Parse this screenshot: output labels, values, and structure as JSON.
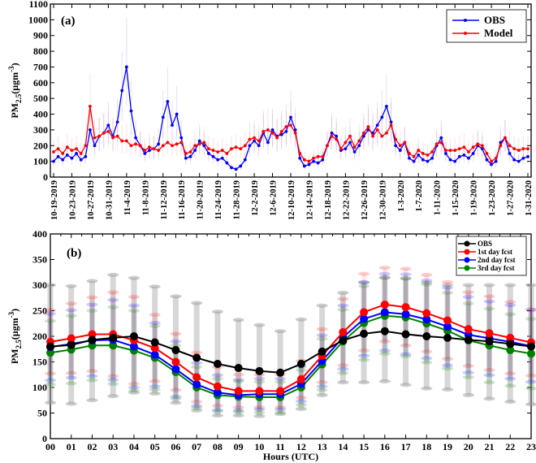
{
  "chart_data": [
    {
      "type": "line",
      "panel_label": "(a)",
      "ylabel": "PM2.5 (µgm-3)",
      "ylabel_main": "PM",
      "ylabel_sub": "2.5",
      "ylabel_unit": "(µgm",
      "ylabel_sup": "-3",
      "ylabel_close": ")",
      "ylim": [
        0,
        1100
      ],
      "yticks": [
        0,
        100,
        200,
        300,
        400,
        500,
        600,
        700,
        800,
        900,
        1000,
        1100
      ],
      "x_start": "10-19-2019",
      "x_step_days": 1,
      "xtick_every_days": 4,
      "xtick_labels": [
        "10-19-2019",
        "10-23-2019",
        "10-27-2019",
        "10-31-2019",
        "11-4-2019",
        "11-8-2019",
        "11-12-2019",
        "11-16-2019",
        "11-20-2019",
        "11-24-2019",
        "11-28-2019",
        "12-2-2019",
        "12-6-2019",
        "12-10-2019",
        "12-14-2019",
        "12-18-2019",
        "12-22-2019",
        "12-26-2019",
        "12-30-2019",
        "1-3-2020",
        "1-7-2020",
        "1-11-2020",
        "1-15-2020",
        "1-19-2020",
        "1-23-2020",
        "1-27-2020",
        "1-31-2020"
      ],
      "legend_position": "top-right",
      "series": [
        {
          "name": "OBS",
          "color": "#0000ff",
          "values": [
            100,
            130,
            110,
            140,
            120,
            150,
            110,
            130,
            300,
            200,
            260,
            280,
            330,
            260,
            350,
            550,
            700,
            420,
            250,
            200,
            150,
            170,
            180,
            210,
            380,
            480,
            330,
            400,
            250,
            120,
            130,
            170,
            230,
            200,
            150,
            130,
            110,
            120,
            90,
            60,
            50,
            70,
            110,
            200,
            230,
            200,
            280,
            220,
            300,
            260,
            270,
            290,
            380,
            300,
            120,
            70,
            80,
            100,
            90,
            110,
            200,
            280,
            260,
            170,
            180,
            220,
            160,
            200,
            260,
            300,
            280,
            330,
            380,
            450,
            350,
            200,
            170,
            220,
            120,
            100,
            140,
            110,
            100,
            120,
            200,
            250,
            150,
            110,
            100,
            130,
            140,
            120,
            150,
            200,
            180,
            110,
            80,
            100,
            220,
            250,
            150,
            110,
            100,
            120,
            130
          ]
        },
        {
          "name": "Model",
          "color": "#ff0000",
          "values": [
            160,
            180,
            150,
            190,
            170,
            180,
            150,
            200,
            450,
            250,
            260,
            280,
            290,
            250,
            260,
            230,
            230,
            200,
            210,
            200,
            170,
            190,
            180,
            170,
            200,
            220,
            200,
            210,
            220,
            150,
            160,
            200,
            210,
            220,
            180,
            170,
            160,
            170,
            150,
            180,
            190,
            180,
            200,
            240,
            250,
            230,
            290,
            300,
            280,
            250,
            290,
            320,
            330,
            280,
            150,
            110,
            100,
            120,
            130,
            130,
            200,
            260,
            240,
            180,
            220,
            260,
            190,
            230,
            280,
            320,
            260,
            300,
            260,
            280,
            330,
            240,
            200,
            220,
            150,
            130,
            170,
            150,
            140,
            160,
            210,
            220,
            170,
            170,
            170,
            180,
            190,
            160,
            190,
            210,
            200,
            150,
            100,
            120,
            200,
            250,
            200,
            180,
            170,
            180,
            180
          ]
        }
      ]
    },
    {
      "type": "line",
      "panel_label": "(b)",
      "xlabel": "Hours (UTC)",
      "ylabel": "PM2.5 (µgm-3)",
      "ylabel_main": "PM",
      "ylabel_sub": "2.5",
      "ylabel_unit": "(µgm",
      "ylabel_sup": "-3",
      "ylabel_close": ")",
      "ylim": [
        0,
        400
      ],
      "yticks": [
        0,
        50,
        100,
        150,
        200,
        250,
        300,
        350,
        400
      ],
      "categories": [
        "00",
        "01",
        "02",
        "03",
        "04",
        "05",
        "06",
        "07",
        "08",
        "09",
        "10",
        "11",
        "12",
        "13",
        "14",
        "15",
        "16",
        "17",
        "18",
        "19",
        "20",
        "21",
        "22",
        "23"
      ],
      "legend_position": "top-right",
      "series": [
        {
          "name": "OBS",
          "color": "#000000",
          "values": [
            180,
            183,
            193,
            197,
            200,
            188,
            173,
            158,
            146,
            138,
            132,
            129,
            146,
            170,
            192,
            205,
            210,
            204,
            200,
            197,
            193,
            190,
            185,
            180
          ],
          "err_low": [
            70,
            68,
            75,
            83,
            90,
            88,
            70,
            55,
            45,
            45,
            44,
            48,
            58,
            85,
            110,
            110,
            112,
            105,
            98,
            96,
            85,
            78,
            72,
            67
          ],
          "err_high": [
            300,
            298,
            308,
            320,
            314,
            297,
            278,
            265,
            248,
            232,
            222,
            210,
            233,
            260,
            285,
            305,
            315,
            313,
            305,
            300,
            300,
            300,
            300,
            300
          ]
        },
        {
          "name": "1st day fcst",
          "color": "#ff0000",
          "values": [
            189,
            196,
            204,
            204,
            192,
            177,
            150,
            120,
            102,
            93,
            93,
            93,
            116,
            162,
            208,
            247,
            262,
            257,
            245,
            231,
            214,
            206,
            197,
            188
          ],
          "std": [
            62,
            68,
            72,
            82,
            85,
            65,
            55,
            48,
            38,
            32,
            32,
            32,
            36,
            52,
            65,
            75,
            72,
            75,
            75,
            75,
            72,
            72,
            70,
            65
          ]
        },
        {
          "name": "2nd day fcst",
          "color": "#0000ff",
          "values": [
            179,
            185,
            192,
            193,
            180,
            164,
            136,
            106,
            90,
            85,
            87,
            87,
            107,
            152,
            198,
            234,
            247,
            243,
            233,
            219,
            203,
            196,
            189,
            181
          ],
          "std": [
            65,
            66,
            70,
            78,
            80,
            62,
            54,
            42,
            34,
            30,
            30,
            30,
            34,
            50,
            62,
            72,
            75,
            78,
            76,
            76,
            74,
            72,
            72,
            70
          ]
        },
        {
          "name": "3rd day fcst",
          "color": "#008000",
          "values": [
            168,
            174,
            182,
            182,
            172,
            158,
            130,
            100,
            85,
            82,
            81,
            81,
            100,
            145,
            190,
            226,
            240,
            237,
            225,
            211,
            192,
            182,
            173,
            166
          ],
          "std": [
            62,
            66,
            68,
            75,
            78,
            62,
            52,
            40,
            32,
            30,
            30,
            30,
            34,
            50,
            62,
            72,
            74,
            76,
            76,
            74,
            72,
            72,
            70,
            68
          ]
        }
      ]
    }
  ]
}
